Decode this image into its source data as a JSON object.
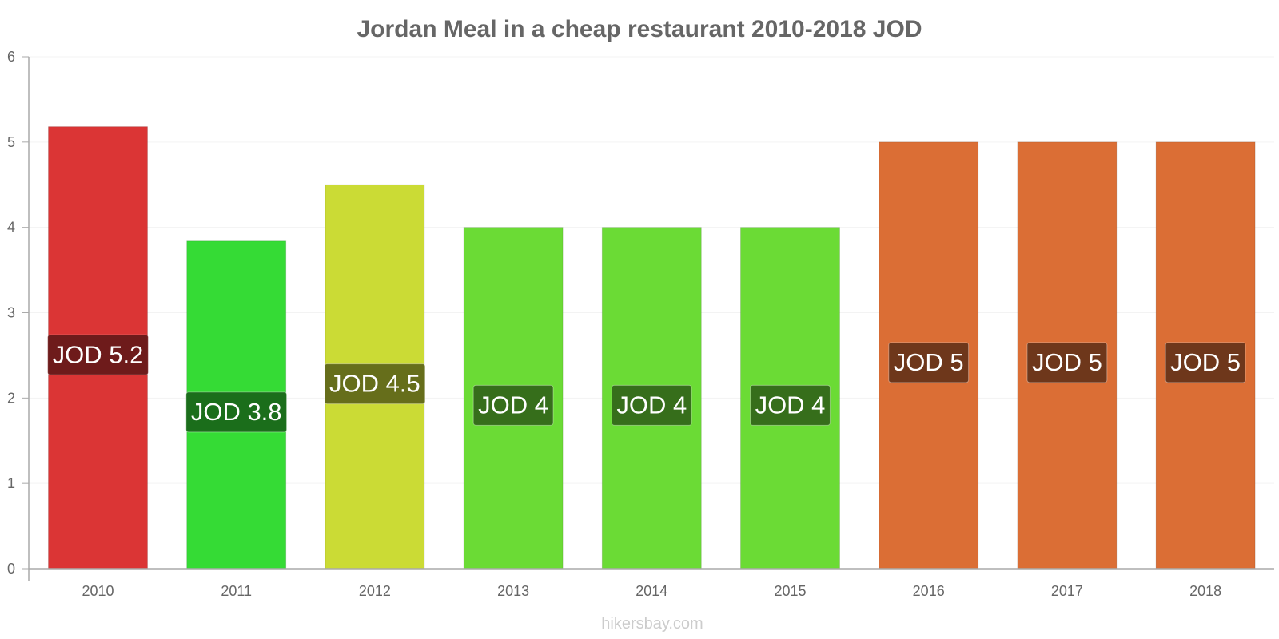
{
  "chart_data": {
    "type": "bar",
    "title": "Jordan Meal in a cheap restaurant 2010-2018 JOD",
    "xlabel": "",
    "ylabel": "",
    "categories": [
      "2010",
      "2011",
      "2012",
      "2013",
      "2014",
      "2015",
      "2016",
      "2017",
      "2018"
    ],
    "values": [
      5.18,
      3.84,
      4.5,
      4,
      4,
      4,
      5,
      5,
      5
    ],
    "data_labels": [
      "JOD 5.2",
      "JOD 3.8",
      "JOD 4.5",
      "JOD 4",
      "JOD 4",
      "JOD 4",
      "JOD 5",
      "JOD 5",
      "JOD 5"
    ],
    "bar_colors": [
      "#db3535",
      "#35db35",
      "#cbdb35",
      "#6bdb35",
      "#6bdb35",
      "#6bdb35",
      "#db6e35",
      "#db6e35",
      "#db6e35"
    ],
    "label_colors": [
      "#6e1b1b",
      "#1b6e1b",
      "#666e1b",
      "#366e1b",
      "#366e1b",
      "#366e1b",
      "#6e371b",
      "#6e371b",
      "#6e371b"
    ],
    "ylim": [
      0,
      6
    ],
    "yticks": [
      "0",
      "1",
      "2",
      "3",
      "4",
      "5",
      "6"
    ],
    "grid": true,
    "legend": "none"
  },
  "watermark": "hikersbay.com"
}
